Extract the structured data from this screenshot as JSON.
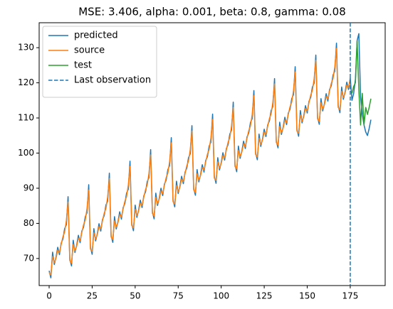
{
  "chart_data": {
    "type": "line",
    "title": "MSE: 3.406, alpha: 0.001, beta: 0.8, gamma: 0.08",
    "xlim": [
      -5.8,
      195.3
    ],
    "ylim": [
      62.3,
      137.1
    ],
    "xticks": [
      0,
      25,
      50,
      75,
      100,
      125,
      150,
      175
    ],
    "yticks": [
      70,
      80,
      90,
      100,
      110,
      120,
      130
    ],
    "legend": "upper left",
    "series": [
      {
        "name": "predicted",
        "color": "#1f77b4",
        "x": [
          0,
          1,
          2,
          3,
          4,
          5,
          6,
          7,
          8,
          9,
          10,
          11,
          12,
          13,
          14,
          15,
          16,
          17,
          18,
          19,
          20,
          21,
          22,
          23,
          24,
          25,
          26,
          27,
          28,
          29,
          30,
          31,
          32,
          33,
          34,
          35,
          36,
          37,
          38,
          39,
          40,
          41,
          42,
          43,
          44,
          45,
          46,
          47,
          48,
          49,
          50,
          51,
          52,
          53,
          54,
          55,
          56,
          57,
          58,
          59,
          60,
          61,
          62,
          63,
          64,
          65,
          66,
          67,
          68,
          69,
          70,
          71,
          72,
          73,
          74,
          75,
          76,
          77,
          78,
          79,
          80,
          81,
          82,
          83,
          84,
          85,
          86,
          87,
          88,
          89,
          90,
          91,
          92,
          93,
          94,
          95,
          96,
          97,
          98,
          99,
          100,
          101,
          102,
          103,
          104,
          105,
          106,
          107,
          108,
          109,
          110,
          111,
          112,
          113,
          114,
          115,
          116,
          117,
          118,
          119,
          120,
          121,
          122,
          123,
          124,
          125,
          126,
          127,
          128,
          129,
          130,
          131,
          132,
          133,
          134,
          135,
          136,
          137,
          138,
          139,
          140,
          141,
          142,
          143,
          144,
          145,
          146,
          147,
          148,
          149,
          150,
          151,
          152,
          153,
          154,
          155,
          156,
          157,
          158,
          159,
          160,
          161,
          162,
          163,
          164,
          165,
          166,
          167,
          168,
          169,
          170,
          171,
          172,
          173,
          174,
          175,
          176,
          177,
          178,
          179,
          180,
          181,
          182,
          183,
          184,
          185,
          186,
          187
        ],
        "values": [
          66.5,
          64.5,
          71.8,
          68.3,
          70.4,
          73.2,
          71.1,
          74.4,
          75.5,
          78.5,
          79.6,
          87.6,
          69.9,
          67.9,
          75.2,
          71.7,
          73.8,
          76.6,
          74.5,
          77.8,
          78.9,
          81.9,
          83,
          91,
          73.2,
          71.2,
          78.5,
          75,
          77.1,
          79.9,
          77.8,
          81.1,
          82.2,
          85.2,
          86.3,
          94.3,
          76.6,
          74.6,
          81.9,
          78.4,
          80.5,
          83.3,
          81.2,
          84.5,
          85.6,
          88.6,
          89.7,
          97.7,
          79.9,
          77.9,
          85.2,
          81.7,
          83.8,
          86.6,
          84.5,
          87.8,
          88.9,
          91.9,
          93,
          101,
          83.3,
          81.3,
          88.6,
          85.1,
          87.2,
          90,
          87.9,
          91.2,
          92.3,
          95.3,
          96.4,
          104.4,
          86.7,
          84.7,
          92,
          88.5,
          90.6,
          93.4,
          91.3,
          94.6,
          95.7,
          98.7,
          99.8,
          107.8,
          90,
          88,
          95.3,
          91.8,
          93.9,
          96.7,
          94.6,
          97.9,
          99,
          102,
          103.1,
          111.1,
          93.4,
          91.4,
          98.7,
          95.2,
          97.3,
          100.1,
          98,
          101.3,
          102.4,
          105.4,
          106.5,
          114.5,
          96.7,
          94.7,
          102,
          98.5,
          100.6,
          103.4,
          101.3,
          104.6,
          105.7,
          108.7,
          109.8,
          117.8,
          100.1,
          98.1,
          105.4,
          101.9,
          104,
          106.8,
          104.7,
          108,
          109.1,
          112.1,
          113.2,
          121.2,
          103.5,
          101.5,
          108.8,
          105.3,
          107.4,
          110.2,
          108.1,
          111.4,
          112.5,
          115.5,
          116.6,
          124.6,
          106.8,
          104.8,
          112.1,
          108.6,
          110.7,
          113.5,
          111.4,
          114.7,
          115.8,
          118.8,
          119.9,
          127.9,
          110.2,
          108.2,
          115.5,
          112,
          114.1,
          116.9,
          114.8,
          118.1,
          119.2,
          122.2,
          123.3,
          131.3,
          113.5,
          111.5,
          118.8,
          115.3,
          117.4,
          120.2,
          118.1,
          121.4,
          115,
          117,
          121,
          132,
          134,
          116,
          111,
          108,
          106,
          105,
          107,
          109.5
        ]
      },
      {
        "name": "source",
        "color": "#ff7f0e",
        "x": [
          0,
          1,
          2,
          3,
          4,
          5,
          6,
          7,
          8,
          9,
          10,
          11,
          12,
          13,
          14,
          15,
          16,
          17,
          18,
          19,
          20,
          21,
          22,
          23,
          24,
          25,
          26,
          27,
          28,
          29,
          30,
          31,
          32,
          33,
          34,
          35,
          36,
          37,
          38,
          39,
          40,
          41,
          42,
          43,
          44,
          45,
          46,
          47,
          48,
          49,
          50,
          51,
          52,
          53,
          54,
          55,
          56,
          57,
          58,
          59,
          60,
          61,
          62,
          63,
          64,
          65,
          66,
          67,
          68,
          69,
          70,
          71,
          72,
          73,
          74,
          75,
          76,
          77,
          78,
          79,
          80,
          81,
          82,
          83,
          84,
          85,
          86,
          87,
          88,
          89,
          90,
          91,
          92,
          93,
          94,
          95,
          96,
          97,
          98,
          99,
          100,
          101,
          102,
          103,
          104,
          105,
          106,
          107,
          108,
          109,
          110,
          111,
          112,
          113,
          114,
          115,
          116,
          117,
          118,
          119,
          120,
          121,
          122,
          123,
          124,
          125,
          126,
          127,
          128,
          129,
          130,
          131,
          132,
          133,
          134,
          135,
          136,
          137,
          138,
          139,
          140,
          141,
          142,
          143,
          144,
          145,
          146,
          147,
          148,
          149,
          150,
          151,
          152,
          153,
          154,
          155,
          156,
          157,
          158,
          159,
          160,
          161,
          162,
          163,
          164,
          165,
          166,
          167,
          168,
          169,
          170,
          171,
          172,
          173,
          174,
          175
        ],
        "values": [
          66,
          65.3,
          70.6,
          68.8,
          70.1,
          72.4,
          71.7,
          74,
          76.2,
          77.5,
          80.8,
          86.1,
          69.4,
          68.7,
          74,
          72.2,
          73.5,
          75.8,
          75.1,
          77.4,
          79.6,
          80.9,
          84.2,
          89.5,
          72.7,
          72,
          77.3,
          75.5,
          76.8,
          79.1,
          78.4,
          80.7,
          82.9,
          84.2,
          87.5,
          92.8,
          76.1,
          75.4,
          80.7,
          78.9,
          80.2,
          82.5,
          81.8,
          84.1,
          86.3,
          87.6,
          90.9,
          96.2,
          79.4,
          78.7,
          84,
          82.2,
          83.5,
          85.8,
          85.1,
          87.4,
          89.6,
          90.9,
          94.2,
          99.5,
          82.8,
          82.1,
          87.4,
          85.6,
          86.9,
          89.2,
          88.5,
          90.8,
          93,
          94.3,
          97.6,
          102.9,
          86.2,
          85.5,
          90.8,
          89,
          90.3,
          92.6,
          91.9,
          94.2,
          96.4,
          97.7,
          101,
          106.3,
          89.5,
          88.8,
          94.1,
          92.3,
          93.6,
          95.9,
          95.2,
          97.5,
          99.7,
          101,
          104.3,
          109.6,
          92.9,
          92.2,
          97.5,
          95.7,
          97,
          99.3,
          98.6,
          100.9,
          103.1,
          104.4,
          107.7,
          113,
          96.2,
          95.5,
          100.8,
          99,
          100.3,
          102.6,
          101.9,
          104.2,
          106.4,
          107.7,
          111,
          116.3,
          99.6,
          98.9,
          104.2,
          102.4,
          103.7,
          106,
          105.3,
          107.6,
          109.8,
          111.1,
          114.4,
          119.7,
          103,
          102.3,
          107.6,
          105.8,
          107.1,
          109.4,
          108.7,
          111,
          113.2,
          114.5,
          117.8,
          123.1,
          106.3,
          105.6,
          110.9,
          109.1,
          110.4,
          112.7,
          112,
          114.3,
          116.5,
          117.8,
          121.1,
          126.4,
          109.7,
          109,
          114.3,
          112.5,
          113.8,
          116.1,
          115.4,
          117.7,
          119.9,
          121.2,
          124.5,
          129.8,
          113,
          112.3,
          117.6,
          115.8,
          117.1,
          119.4,
          118.7,
          121
        ]
      },
      {
        "name": "test",
        "color": "#2ca02c",
        "x": [
          176,
          177,
          178,
          179,
          180,
          181,
          182,
          183,
          184,
          185,
          186,
          187
        ],
        "values": [
          117,
          119,
          120,
          132,
          118,
          108,
          117,
          108,
          113,
          111,
          113,
          115.5
        ]
      }
    ],
    "vline": {
      "name": "Last observation",
      "x": 175,
      "color": "#1f77b4",
      "style": "dashed"
    }
  }
}
